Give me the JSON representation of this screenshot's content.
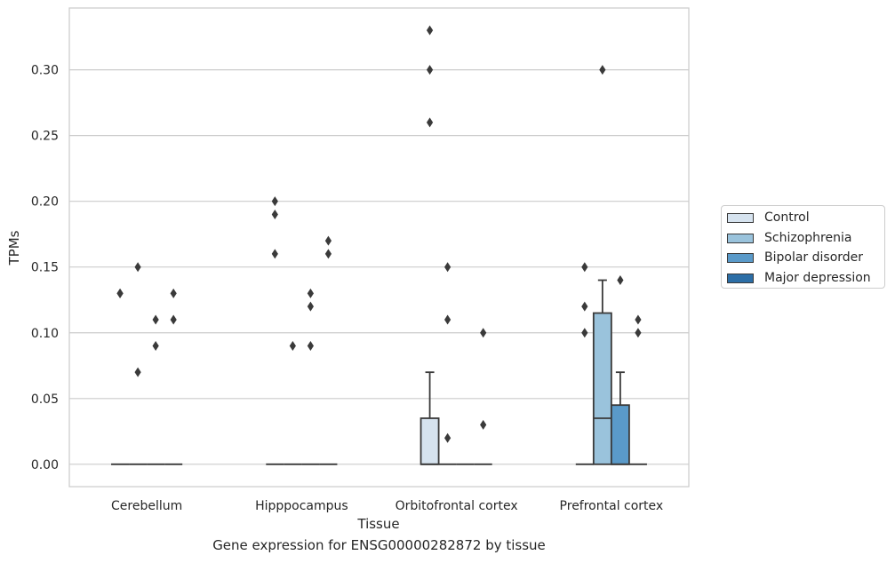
{
  "chart_data": {
    "type": "box",
    "title": "Gene expression for ENSG00000282872 by tissue",
    "xlabel": "Tissue",
    "ylabel": "TPMs",
    "ylim": [
      -0.017,
      0.347
    ],
    "yticks": [
      0.0,
      0.05,
      0.1,
      0.15,
      0.2,
      0.25,
      0.3
    ],
    "ytick_labels": [
      "0.00",
      "0.05",
      "0.10",
      "0.15",
      "0.20",
      "0.25",
      "0.30"
    ],
    "categories": [
      "Cerebellum",
      "Hipppocampus",
      "Orbitofrontal cortex",
      "Prefrontal cortex"
    ],
    "grid": "horizontal",
    "legend_position": "center-right outside",
    "series": [
      {
        "name": "Control",
        "color": "#d6e3ef",
        "boxes": [
          {
            "q1": 0,
            "median": 0,
            "q3": 0,
            "whisker_low": 0,
            "whisker_high": 0,
            "outliers": [
              0.13,
              0.13
            ]
          },
          {
            "q1": 0,
            "median": 0,
            "q3": 0,
            "whisker_low": 0,
            "whisker_high": 0,
            "outliers": [
              0.16,
              0.19,
              0.2
            ]
          },
          {
            "q1": 0,
            "median": 0,
            "q3": 0.035,
            "whisker_low": 0,
            "whisker_high": 0.07,
            "outliers": [
              0.26,
              0.3,
              0.33
            ]
          },
          {
            "q1": 0,
            "median": 0,
            "q3": 0,
            "whisker_low": 0,
            "whisker_high": 0,
            "outliers": [
              0.1,
              0.12,
              0.15
            ]
          }
        ]
      },
      {
        "name": "Schizophrenia",
        "color": "#9ac3dc",
        "boxes": [
          {
            "q1": 0,
            "median": 0,
            "q3": 0,
            "whisker_low": 0,
            "whisker_high": 0,
            "outliers": [
              0.07,
              0.15
            ]
          },
          {
            "q1": 0,
            "median": 0,
            "q3": 0,
            "whisker_low": 0,
            "whisker_high": 0,
            "outliers": [
              0.09
            ]
          },
          {
            "q1": 0,
            "median": 0,
            "q3": 0,
            "whisker_low": 0,
            "whisker_high": 0,
            "outliers": [
              0.02,
              0.11,
              0.15
            ]
          },
          {
            "q1": 0,
            "median": 0.035,
            "q3": 0.115,
            "whisker_low": 0,
            "whisker_high": 0.14,
            "outliers": [
              0.3
            ]
          }
        ]
      },
      {
        "name": "Bipolar disorder",
        "color": "#5a9ac9",
        "boxes": [
          {
            "q1": 0,
            "median": 0,
            "q3": 0,
            "whisker_low": 0,
            "whisker_high": 0,
            "outliers": [
              0.09,
              0.11
            ]
          },
          {
            "q1": 0,
            "median": 0,
            "q3": 0,
            "whisker_low": 0,
            "whisker_high": 0,
            "outliers": [
              0.09,
              0.12,
              0.13
            ]
          },
          {
            "q1": 0,
            "median": 0,
            "q3": 0,
            "whisker_low": 0,
            "whisker_high": 0,
            "outliers": []
          },
          {
            "q1": 0,
            "median": 0,
            "q3": 0.045,
            "whisker_low": 0,
            "whisker_high": 0.07,
            "outliers": [
              0.14
            ]
          }
        ]
      },
      {
        "name": "Major depression",
        "color": "#2c6ea6",
        "boxes": [
          {
            "q1": 0,
            "median": 0,
            "q3": 0,
            "whisker_low": 0,
            "whisker_high": 0,
            "outliers": [
              0.11,
              0.13
            ]
          },
          {
            "q1": 0,
            "median": 0,
            "q3": 0,
            "whisker_low": 0,
            "whisker_high": 0,
            "outliers": [
              0.16,
              0.17
            ]
          },
          {
            "q1": 0,
            "median": 0,
            "q3": 0,
            "whisker_low": 0,
            "whisker_high": 0,
            "outliers": [
              0.03,
              0.1
            ]
          },
          {
            "q1": 0,
            "median": 0,
            "q3": 0,
            "whisker_low": 0,
            "whisker_high": 0,
            "outliers": [
              0.1,
              0.11
            ]
          }
        ]
      }
    ]
  }
}
